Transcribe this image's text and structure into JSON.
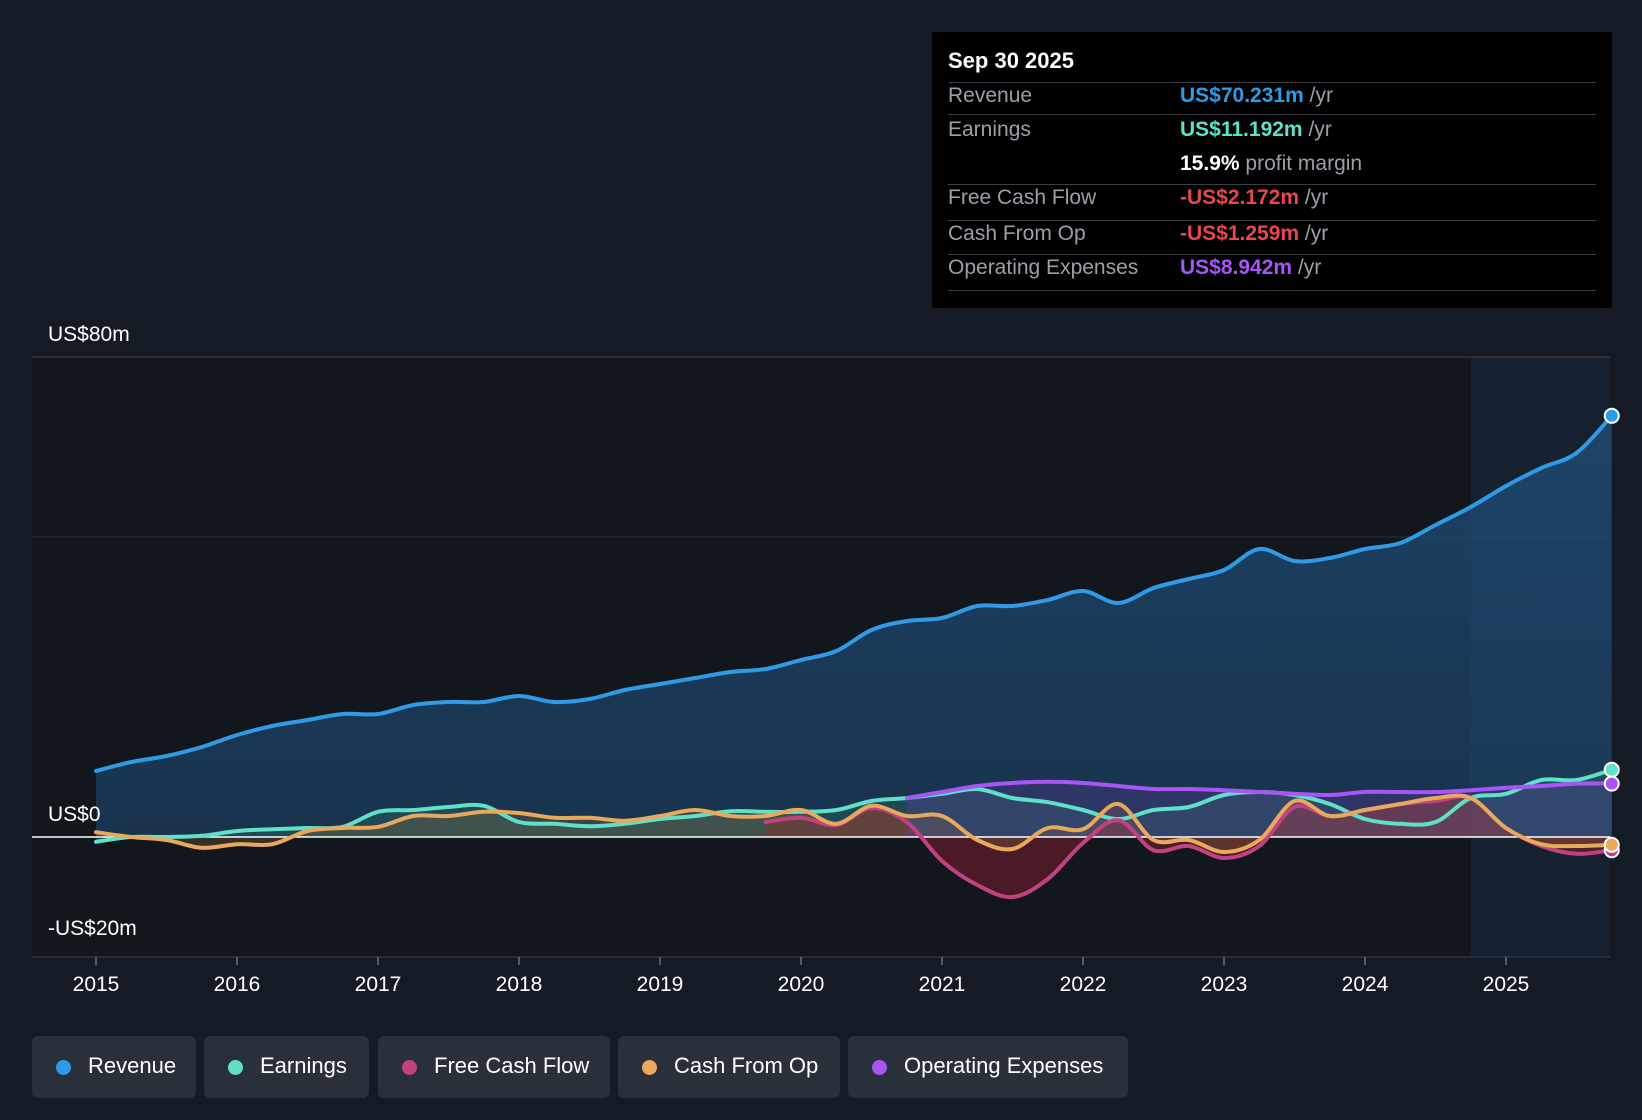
{
  "tooltip": {
    "date": "Sep 30 2025",
    "rows": [
      {
        "label": "Revenue",
        "value": "US$70.231m",
        "unit": "/yr",
        "color": "#2f9be6"
      },
      {
        "label": "Earnings",
        "value": "US$11.192m",
        "unit": "/yr",
        "color": "#5fe0c8"
      },
      {
        "label": "",
        "value": "15.9%",
        "unit": "profit margin",
        "color": "#ffffff"
      },
      {
        "label": "Free Cash Flow",
        "value": "-US$2.172m",
        "unit": "/yr",
        "color": "#e8474f"
      },
      {
        "label": "Cash From Op",
        "value": "-US$1.259m",
        "unit": "/yr",
        "color": "#e8474f"
      },
      {
        "label": "Operating Expenses",
        "value": "US$8.942m",
        "unit": "/yr",
        "color": "#a855f7"
      }
    ]
  },
  "legend": [
    {
      "label": "Revenue",
      "color": "#2f9be6"
    },
    {
      "label": "Earnings",
      "color": "#5fe0c8"
    },
    {
      "label": "Free Cash Flow",
      "color": "#c2417f"
    },
    {
      "label": "Cash From Op",
      "color": "#e8a95c"
    },
    {
      "label": "Operating Expenses",
      "color": "#a855f7"
    }
  ],
  "chart_data": {
    "type": "line",
    "title": "",
    "xlabel": "",
    "ylabel": "",
    "ylim": [
      -20,
      80
    ],
    "y_tick_labels": [
      {
        "value": 80,
        "label": "US$80m"
      },
      {
        "value": 0,
        "label": "US$0"
      },
      {
        "value": -20,
        "label": "-US$20m"
      }
    ],
    "x_tick_labels": [
      "2015",
      "2016",
      "2017",
      "2018",
      "2019",
      "2020",
      "2021",
      "2022",
      "2023",
      "2024",
      "2025"
    ],
    "forecast_start": 2024.75,
    "series": [
      {
        "name": "Revenue",
        "color": "#2f9be6",
        "area": true,
        "x": [
          2015,
          2015.25,
          2015.5,
          2015.75,
          2016,
          2016.25,
          2016.5,
          2016.75,
          2017,
          2017.25,
          2017.5,
          2017.75,
          2018,
          2018.25,
          2018.5,
          2018.75,
          2019,
          2019.25,
          2019.5,
          2019.75,
          2020,
          2020.25,
          2020.5,
          2020.75,
          2021,
          2021.25,
          2021.5,
          2021.75,
          2022,
          2022.25,
          2022.5,
          2022.75,
          2023,
          2023.25,
          2023.5,
          2023.75,
          2024,
          2024.25,
          2024.5,
          2024.75,
          2025,
          2025.25,
          2025.5,
          2025.75
        ],
        "y": [
          11,
          12.5,
          13.5,
          15,
          17,
          18.5,
          19.5,
          20.5,
          20.5,
          22,
          22.5,
          22.5,
          23.5,
          22.5,
          23,
          24.5,
          25.5,
          26.5,
          27.5,
          28,
          29.5,
          31,
          34.5,
          36,
          36.5,
          38.5,
          38.5,
          39.5,
          41,
          39,
          41.5,
          43,
          44.5,
          48,
          46,
          46.5,
          48,
          49,
          52,
          55,
          58.5,
          61.5,
          64,
          70.2
        ]
      },
      {
        "name": "Earnings",
        "color": "#5fe0c8",
        "area": true,
        "x": [
          2015,
          2015.25,
          2015.5,
          2015.75,
          2016,
          2016.25,
          2016.5,
          2016.75,
          2017,
          2017.25,
          2017.5,
          2017.75,
          2018,
          2018.25,
          2018.5,
          2018.75,
          2019,
          2019.25,
          2019.5,
          2019.75,
          2020,
          2020.25,
          2020.5,
          2020.75,
          2021,
          2021.25,
          2021.5,
          2021.75,
          2022,
          2022.25,
          2022.5,
          2022.75,
          2023,
          2023.25,
          2023.5,
          2023.75,
          2024,
          2024.25,
          2024.5,
          2024.75,
          2025,
          2025.25,
          2025.5,
          2025.75
        ],
        "y": [
          -0.8,
          0,
          0,
          0.2,
          1,
          1.3,
          1.5,
          1.7,
          4.2,
          4.5,
          5,
          5.2,
          2.5,
          2.2,
          1.8,
          2.2,
          3,
          3.5,
          4.3,
          4.2,
          4.2,
          4.5,
          6,
          6.5,
          7.2,
          8,
          6.5,
          5.8,
          4.5,
          3,
          4.5,
          5,
          7,
          7.5,
          7,
          5.5,
          3,
          2.2,
          2.5,
          6.5,
          7.2,
          9.5,
          9.5,
          11.2
        ]
      },
      {
        "name": "Free Cash Flow",
        "color": "#c2417f",
        "area": true,
        "x": [
          2019.75,
          2020,
          2020.25,
          2020.5,
          2020.75,
          2021,
          2021.25,
          2021.5,
          2021.75,
          2022,
          2022.25,
          2022.5,
          2022.75,
          2023,
          2023.25,
          2023.5,
          2023.75,
          2024,
          2024.25,
          2024.5,
          2024.75,
          2025,
          2025.25,
          2025.5,
          2025.75
        ],
        "y": [
          2.5,
          3.2,
          2,
          4.8,
          2.5,
          -4,
          -8,
          -10,
          -7,
          -1,
          2.8,
          -2.2,
          -1.5,
          -3.5,
          -1.5,
          5,
          3.5,
          4.5,
          5.5,
          6,
          6.5,
          1.5,
          -1.5,
          -2.8,
          -2.2
        ]
      },
      {
        "name": "Cash From Op",
        "color": "#e8a95c",
        "area": true,
        "x": [
          2015,
          2015.25,
          2015.5,
          2015.75,
          2016,
          2016.25,
          2016.5,
          2016.75,
          2017,
          2017.25,
          2017.5,
          2017.75,
          2018,
          2018.25,
          2018.5,
          2018.75,
          2019,
          2019.25,
          2019.5,
          2019.75,
          2020,
          2020.25,
          2020.5,
          2020.75,
          2021,
          2021.25,
          2021.5,
          2021.75,
          2022,
          2022.25,
          2022.5,
          2022.75,
          2023,
          2023.25,
          2023.5,
          2023.75,
          2024,
          2024.25,
          2024.5,
          2024.75,
          2025,
          2025.25,
          2025.5,
          2025.75
        ],
        "y": [
          0.8,
          0,
          -0.5,
          -1.8,
          -1.2,
          -1.2,
          1,
          1.5,
          1.7,
          3.5,
          3.5,
          4.2,
          4,
          3.2,
          3.2,
          2.7,
          3.5,
          4.5,
          3.5,
          3.5,
          4.5,
          2.2,
          5.2,
          3.5,
          3.5,
          -0.5,
          -2,
          1.5,
          1.3,
          5.5,
          -0.5,
          -0.5,
          -2.5,
          -0.5,
          6,
          3.5,
          4.5,
          5.5,
          6.5,
          6.5,
          1.5,
          -1.2,
          -1.5,
          -1.3
        ]
      },
      {
        "name": "Operating Expenses",
        "color": "#a855f7",
        "area": true,
        "x": [
          2020.75,
          2021,
          2021.25,
          2021.5,
          2021.75,
          2022,
          2022.25,
          2022.5,
          2022.75,
          2023,
          2023.25,
          2023.5,
          2023.75,
          2024,
          2024.25,
          2024.5,
          2024.75,
          2025,
          2025.25,
          2025.5,
          2025.75
        ],
        "y": [
          6.5,
          7.5,
          8.5,
          9,
          9.2,
          9,
          8.5,
          8,
          8,
          7.8,
          7.5,
          7.2,
          7,
          7.5,
          7.5,
          7.5,
          7.8,
          8.2,
          8.5,
          8.9,
          8.9
        ]
      }
    ]
  }
}
